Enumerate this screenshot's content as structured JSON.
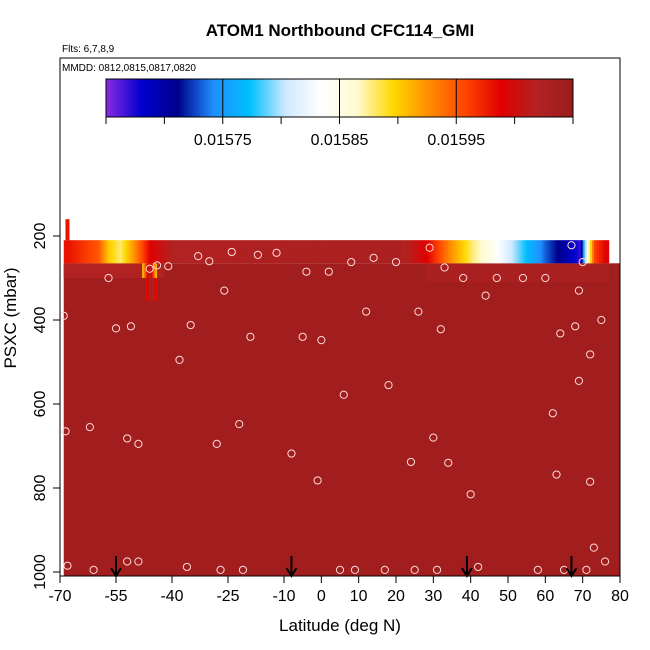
{
  "chart_data": {
    "type": "heatmap",
    "title": "ATOM1 Northbound CFC114_GMI",
    "notes": [
      "Flts: 6,7,8,9",
      "MMDD: 0812,0815,0817,0820"
    ],
    "xlabel": "Latitude (deg N)",
    "ylabel": "PSXC (mbar)",
    "xlim": [
      -70,
      80
    ],
    "ylim": [
      1000,
      0
    ],
    "x_ticks": [
      -70,
      -55,
      -40,
      -25,
      -10,
      0,
      10,
      20,
      30,
      40,
      50,
      60,
      70,
      80
    ],
    "x_tick_labels": [
      "-70",
      "-55",
      "-40",
      "-25",
      "-10",
      "0",
      "10",
      "20",
      "30",
      "40",
      "50",
      "60",
      "70",
      "80"
    ],
    "y_ticks": [
      200,
      400,
      600,
      800,
      1000
    ],
    "y_tick_labels": [
      "200",
      "400",
      "600",
      "800",
      "1000"
    ],
    "colorbar": {
      "range": [
        0.01565,
        0.01605
      ],
      "tick_values": [
        0.01575,
        0.01585,
        0.01595
      ],
      "tick_labels": [
        "0.01575",
        "0.01585",
        "0.01595"
      ],
      "colors": [
        "#8a2be2",
        "#0000cd",
        "#00008b",
        "#1e90ff",
        "#00bfff",
        "#cfe9ff",
        "#ffffff",
        "#fffacd",
        "#ffd700",
        "#ff8c00",
        "#ff4500",
        "#e00000",
        "#b22222",
        "#9b1c1c"
      ]
    },
    "background_value": 0.01604,
    "top_band": {
      "p_range": [
        210,
        265
      ],
      "points": [
        {
          "lat": -68,
          "value": 0.01598
        },
        {
          "lat": -60,
          "value": 0.01595
        },
        {
          "lat": -57,
          "value": 0.0159
        },
        {
          "lat": -54,
          "value": 0.01588
        },
        {
          "lat": -50,
          "value": 0.01593
        },
        {
          "lat": -46,
          "value": 0.01599
        },
        {
          "lat": -40,
          "value": 0.01602
        },
        {
          "lat": 20,
          "value": 0.01603
        },
        {
          "lat": 28,
          "value": 0.01599
        },
        {
          "lat": 34,
          "value": 0.01593
        },
        {
          "lat": 40,
          "value": 0.01588
        },
        {
          "lat": 45,
          "value": 0.01585
        },
        {
          "lat": 50,
          "value": 0.01581
        },
        {
          "lat": 55,
          "value": 0.01577
        },
        {
          "lat": 60,
          "value": 0.01573
        },
        {
          "lat": 65,
          "value": 0.0157
        },
        {
          "lat": 69,
          "value": 0.01567
        },
        {
          "lat": 71,
          "value": 0.01584
        },
        {
          "lat": 73,
          "value": 0.01596
        },
        {
          "lat": 76,
          "value": 0.01599
        }
      ]
    },
    "anomaly": {
      "lat_range": [
        -48,
        -44
      ],
      "p_range": [
        265,
        300
      ],
      "value": 0.0159
    },
    "anomaly_lower": {
      "lat_range": [
        -47,
        -44
      ],
      "p_range": [
        300,
        355
      ],
      "value": 0.01598
    },
    "flight_segment": {
      "lat": -68,
      "p_range": [
        160,
        210
      ],
      "value": 0.01598
    },
    "sample_points": [
      [
        -69,
        390
      ],
      [
        -68.5,
        665
      ],
      [
        -68,
        985
      ],
      [
        -62,
        655
      ],
      [
        -61,
        995
      ],
      [
        -57,
        300
      ],
      [
        -55,
        420
      ],
      [
        -52,
        682
      ],
      [
        -52,
        975
      ],
      [
        -51,
        415
      ],
      [
        -49,
        695
      ],
      [
        -49,
        975
      ],
      [
        -46,
        278
      ],
      [
        -44,
        270
      ],
      [
        -41,
        272
      ],
      [
        -38,
        495
      ],
      [
        -36,
        988
      ],
      [
        -35,
        412
      ],
      [
        -33,
        248
      ],
      [
        -30,
        260
      ],
      [
        -28,
        695
      ],
      [
        -27,
        995
      ],
      [
        -26,
        330
      ],
      [
        -24,
        238
      ],
      [
        -22,
        648
      ],
      [
        -21,
        995
      ],
      [
        -19,
        440
      ],
      [
        -17,
        245
      ],
      [
        -12,
        240
      ],
      [
        -8,
        718
      ],
      [
        -5,
        440
      ],
      [
        -4,
        285
      ],
      [
        -1,
        782
      ],
      [
        0,
        448
      ],
      [
        2,
        285
      ],
      [
        5,
        995
      ],
      [
        6,
        578
      ],
      [
        8,
        262
      ],
      [
        9,
        995
      ],
      [
        12,
        380
      ],
      [
        14,
        252
      ],
      [
        17,
        995
      ],
      [
        18,
        555
      ],
      [
        20,
        262
      ],
      [
        24,
        738
      ],
      [
        25,
        995
      ],
      [
        26,
        380
      ],
      [
        29,
        228
      ],
      [
        30,
        680
      ],
      [
        31,
        995
      ],
      [
        32,
        422
      ],
      [
        33,
        275
      ],
      [
        34,
        740
      ],
      [
        38,
        300
      ],
      [
        40,
        815
      ],
      [
        42,
        988
      ],
      [
        44,
        342
      ],
      [
        47,
        300
      ],
      [
        54,
        300
      ],
      [
        58,
        995
      ],
      [
        60,
        300
      ],
      [
        62,
        622
      ],
      [
        63,
        768
      ],
      [
        64,
        432
      ],
      [
        65,
        995
      ],
      [
        67,
        222
      ],
      [
        68,
        415
      ],
      [
        69,
        330
      ],
      [
        69,
        545
      ],
      [
        70,
        262
      ],
      [
        71,
        995
      ],
      [
        72,
        482
      ],
      [
        72,
        785
      ],
      [
        73,
        942
      ],
      [
        75,
        400
      ],
      [
        76,
        975
      ]
    ],
    "arrow_markers_lat": [
      -55,
      -8,
      39,
      67
    ]
  }
}
